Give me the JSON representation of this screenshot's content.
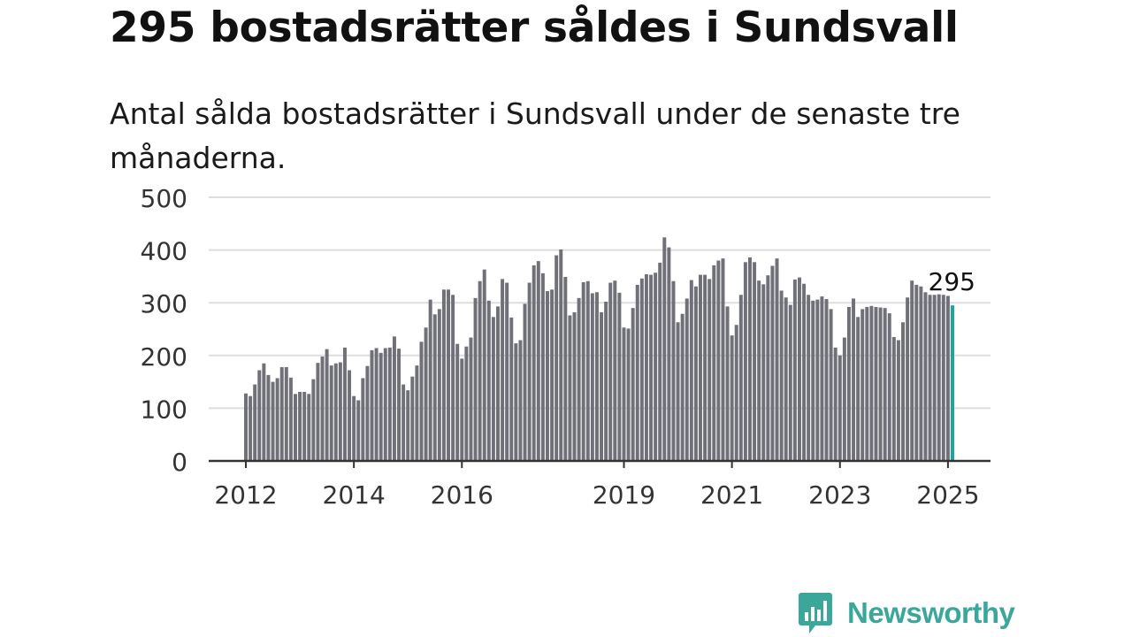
{
  "title": "295 bostadsrätter såldes i Sundsvall",
  "subtitle": "Antal sålda bostadsrätter i Sundsvall under de senaste tre månaderna.",
  "logo": {
    "text": "Newsworthy",
    "icon": "newsworthy-chart-bubble-icon",
    "color": "#3aa79a"
  },
  "colors": {
    "bar": "#707078",
    "highlight": "#1aa69a",
    "grid": "#dddddd",
    "axis": "#333333"
  },
  "chart_data": {
    "type": "bar",
    "x_start": "2012-01",
    "x_interval": "month",
    "values": [
      128,
      123,
      145,
      172,
      185,
      163,
      150,
      157,
      178,
      178,
      158,
      127,
      131,
      131,
      127,
      155,
      186,
      198,
      212,
      181,
      185,
      187,
      215,
      172,
      123,
      115,
      157,
      180,
      210,
      214,
      205,
      214,
      215,
      236,
      213,
      145,
      134,
      160,
      181,
      226,
      253,
      306,
      278,
      288,
      325,
      325,
      315,
      222,
      194,
      217,
      234,
      309,
      341,
      363,
      304,
      273,
      293,
      345,
      338,
      272,
      223,
      229,
      298,
      338,
      371,
      379,
      356,
      322,
      325,
      390,
      401,
      349,
      276,
      282,
      309,
      339,
      341,
      318,
      320,
      282,
      302,
      338,
      342,
      319,
      253,
      251,
      290,
      334,
      346,
      354,
      353,
      357,
      376,
      424,
      405,
      341,
      263,
      279,
      308,
      343,
      331,
      353,
      353,
      345,
      371,
      380,
      384,
      293,
      238,
      258,
      315,
      377,
      386,
      377,
      342,
      335,
      352,
      370,
      384,
      323,
      310,
      296,
      344,
      348,
      336,
      315,
      304,
      306,
      312,
      307,
      288,
      215,
      200,
      234,
      292,
      308,
      273,
      288,
      292,
      294,
      292,
      291,
      290,
      280,
      235,
      229,
      263,
      310,
      342,
      334,
      331,
      320,
      315,
      315,
      316,
      315,
      313,
      295
    ],
    "highlight_last": true,
    "last_label": "295",
    "ylim": [
      0,
      500
    ],
    "y_ticks": [
      0,
      100,
      200,
      300,
      400,
      500
    ],
    "x_ticks": [
      {
        "label": "2012",
        "index": 0
      },
      {
        "label": "2014",
        "index": 24
      },
      {
        "label": "2016",
        "index": 48
      },
      {
        "label": "2019",
        "index": 84
      },
      {
        "label": "2021",
        "index": 108
      },
      {
        "label": "2023",
        "index": 132
      },
      {
        "label": "2025",
        "index": 156
      }
    ],
    "grid": true,
    "xlabel": "",
    "ylabel": ""
  }
}
